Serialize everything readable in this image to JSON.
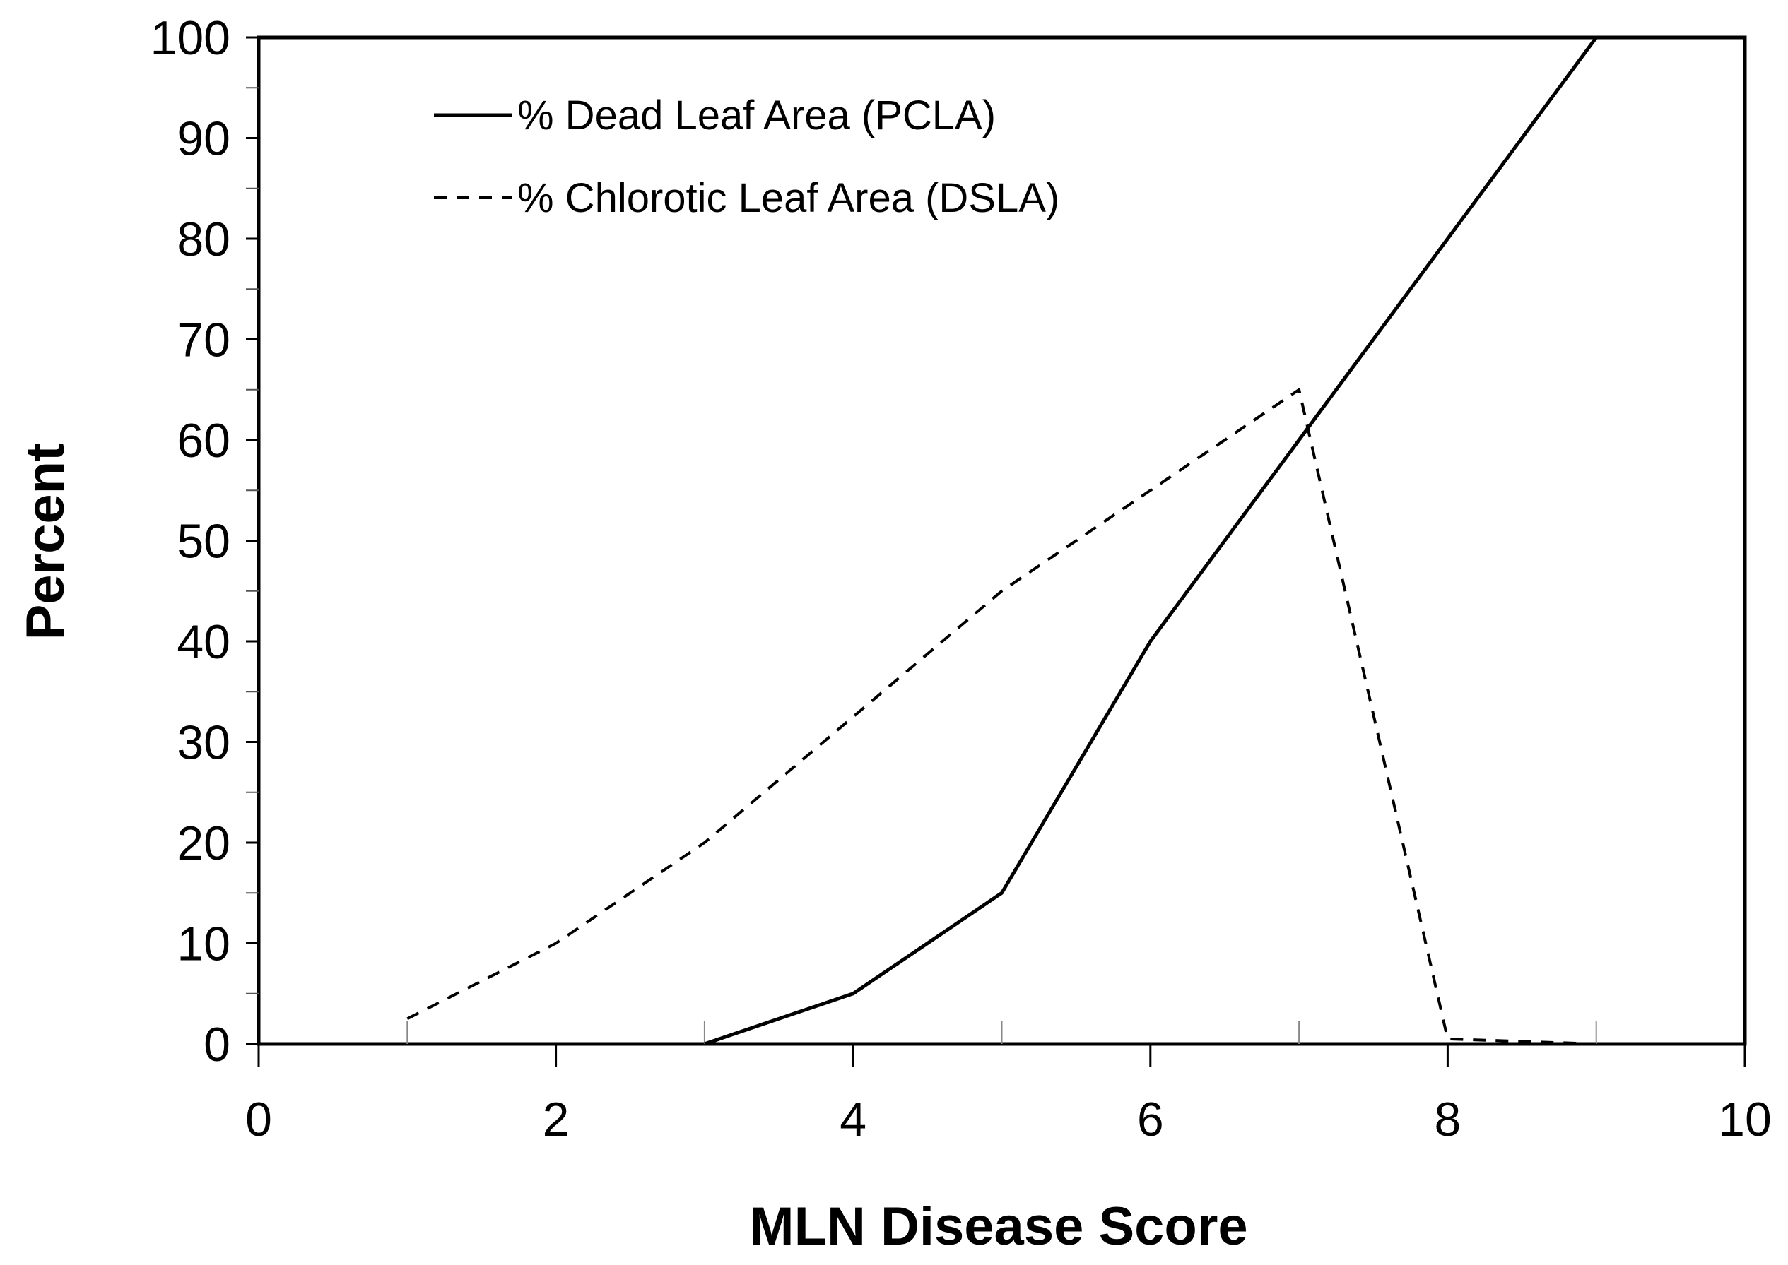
{
  "chart_data": {
    "type": "line",
    "title": "",
    "xlabel": "MLN Disease Score",
    "ylabel": "Percent",
    "xlim": [
      0,
      10
    ],
    "ylim": [
      0,
      100
    ],
    "x_ticks": [
      0,
      2,
      4,
      6,
      8,
      10
    ],
    "x_minor_ticks": [
      1,
      3,
      5,
      7,
      9
    ],
    "y_ticks": [
      0,
      10,
      20,
      30,
      40,
      50,
      60,
      70,
      80,
      90,
      100
    ],
    "y_minor_step": 5,
    "grid": false,
    "legend_position": "top-left",
    "series": [
      {
        "name": "% Dead Leaf Area (PCLA)",
        "style": "solid",
        "color": "#000000",
        "x": [
          3,
          4,
          5,
          6,
          7,
          8,
          9
        ],
        "y": [
          0,
          5,
          15,
          40,
          60,
          80,
          100
        ]
      },
      {
        "name": "% Chlorotic Leaf Area (DSLA)",
        "style": "dashed",
        "color": "#000000",
        "x": [
          1,
          2,
          3,
          4,
          5,
          6,
          7,
          8,
          9
        ],
        "y": [
          2.5,
          10,
          20,
          32.5,
          45,
          55,
          65,
          0.5,
          0
        ]
      }
    ]
  }
}
